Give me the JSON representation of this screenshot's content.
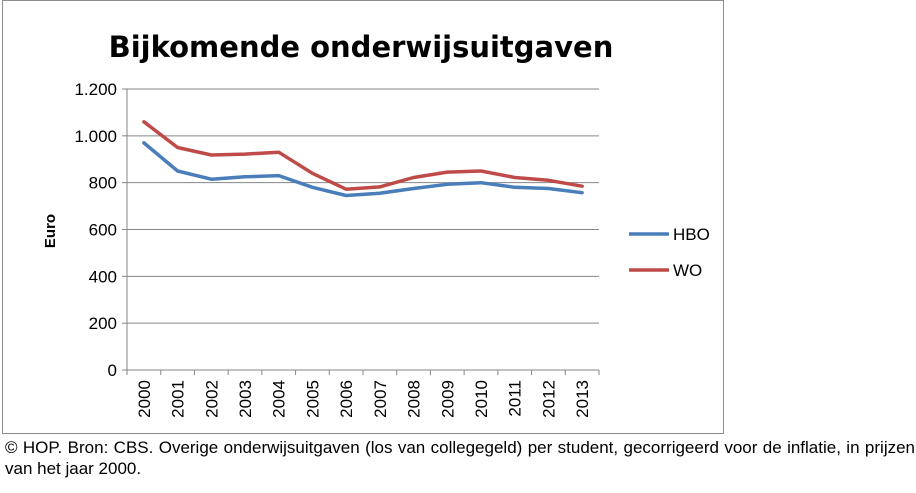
{
  "chart_data": {
    "type": "line",
    "title": "Bijkomende onderwijsuitgaven",
    "ylabel": "Euro",
    "xlabel": "",
    "categories": [
      "2000",
      "2001",
      "2002",
      "2003",
      "2004",
      "2005",
      "2006",
      "2007",
      "2008",
      "2009",
      "2010",
      "2011",
      "2012",
      "2013"
    ],
    "ylim": [
      0,
      1200
    ],
    "yticks": [
      0,
      200,
      400,
      600,
      800,
      1000,
      1200
    ],
    "ytick_labels": [
      "0",
      "200",
      "400",
      "600",
      "800",
      "1.000",
      "1.200"
    ],
    "grid": true,
    "legend_position": "right",
    "series": [
      {
        "name": "HBO",
        "color": "#4a7ebb",
        "values": [
          970,
          850,
          815,
          825,
          830,
          780,
          745,
          755,
          775,
          793,
          800,
          780,
          775,
          757
        ]
      },
      {
        "name": "WO",
        "color": "#be4b48",
        "values": [
          1060,
          950,
          918,
          922,
          930,
          840,
          772,
          782,
          822,
          845,
          850,
          822,
          810,
          785
        ]
      }
    ]
  },
  "caption": "© HOP. Bron: CBS. Overige onderwijsuitgaven (los van collegegeld) per student, gecorrigeerd voor de inflatie, in prijzen van het jaar 2000."
}
